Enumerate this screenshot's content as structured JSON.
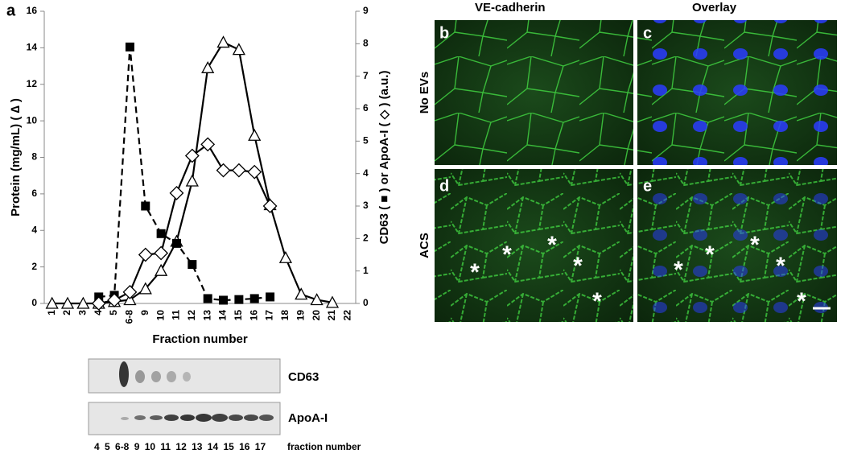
{
  "chart_data": {
    "type": "line",
    "panel_label": "a",
    "xlabel": "Fraction number",
    "ylabel": "Protein (mg/mL) ( ∆ )",
    "y2label": "CD63 ( ■ ) or ApoA-I ( ◇ ) (a.u.)",
    "categories": [
      "1",
      "2",
      "3",
      "4",
      "5",
      "6-8",
      "9",
      "10",
      "11",
      "12",
      "13",
      "14",
      "15",
      "16",
      "17",
      "18",
      "19",
      "20",
      "21",
      "22"
    ],
    "ylim": [
      0,
      16
    ],
    "yticks": [
      0,
      2,
      4,
      6,
      8,
      10,
      12,
      14,
      16
    ],
    "y2lim": [
      0,
      9
    ],
    "y2ticks": [
      0,
      1,
      2,
      3,
      4,
      5,
      6,
      7,
      8,
      9
    ],
    "series": [
      {
        "name": "Protein",
        "color": "#000000",
        "marker": "triangle",
        "dash": false,
        "values": [
          0,
          0,
          0,
          0,
          0.1,
          0.2,
          0.8,
          1.8,
          3.4,
          6.7,
          12.9,
          14.3,
          13.9,
          9.2,
          5.4,
          2.5,
          0.5,
          0.2,
          0.05,
          null
        ]
      },
      {
        "name": "CD63",
        "color": "#000000",
        "marker": "square",
        "dash": true,
        "axis": "y2",
        "values": [
          null,
          null,
          null,
          0.2,
          0.25,
          7.9,
          3.0,
          2.15,
          1.85,
          1.2,
          0.15,
          0.1,
          0.12,
          0.15,
          0.2,
          null,
          null,
          null,
          null,
          null
        ]
      },
      {
        "name": "ApoA-I",
        "color": "#000000",
        "marker": "diamond",
        "dash": false,
        "axis": "y2",
        "values": [
          null,
          null,
          null,
          0,
          0.1,
          0.35,
          1.5,
          1.55,
          3.4,
          4.55,
          4.9,
          4.1,
          4.1,
          4.05,
          3.0,
          null,
          null,
          null,
          null,
          null
        ]
      }
    ]
  },
  "blots": {
    "rows": [
      "CD63",
      "ApoA-I"
    ],
    "lanes": "4 5 6-8 9 10 11 12 13 14 15 16 17",
    "lanes_label": "fraction number"
  },
  "micrographs": {
    "columns": [
      "VE-cadherin",
      "Overlay"
    ],
    "rows": [
      "No EVs",
      "ACS"
    ],
    "panels": [
      "b",
      "c",
      "d",
      "e"
    ],
    "marker": "*"
  }
}
